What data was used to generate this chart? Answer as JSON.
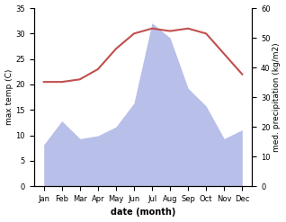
{
  "months": [
    "Jan",
    "Feb",
    "Mar",
    "Apr",
    "May",
    "Jun",
    "Jul",
    "Aug",
    "Sep",
    "Oct",
    "Nov",
    "Dec"
  ],
  "max_temp": [
    20.5,
    20.5,
    21.0,
    23.0,
    27.0,
    30.0,
    31.0,
    30.5,
    31.0,
    30.0,
    26.0,
    22.0
  ],
  "precipitation": [
    14,
    22,
    16,
    17,
    20,
    28,
    55,
    50,
    33,
    27,
    16,
    19
  ],
  "temp_color": "#c0504d",
  "precip_fill_color": "#b8bfe8",
  "ylabel_left": "max temp (C)",
  "ylabel_right": "med. precipitation (kg/m2)",
  "xlabel": "date (month)",
  "ylim_left": [
    0,
    35
  ],
  "ylim_right": [
    0,
    60
  ],
  "yticks_left": [
    0,
    5,
    10,
    15,
    20,
    25,
    30,
    35
  ],
  "yticks_right": [
    0,
    10,
    20,
    30,
    40,
    50,
    60
  ]
}
